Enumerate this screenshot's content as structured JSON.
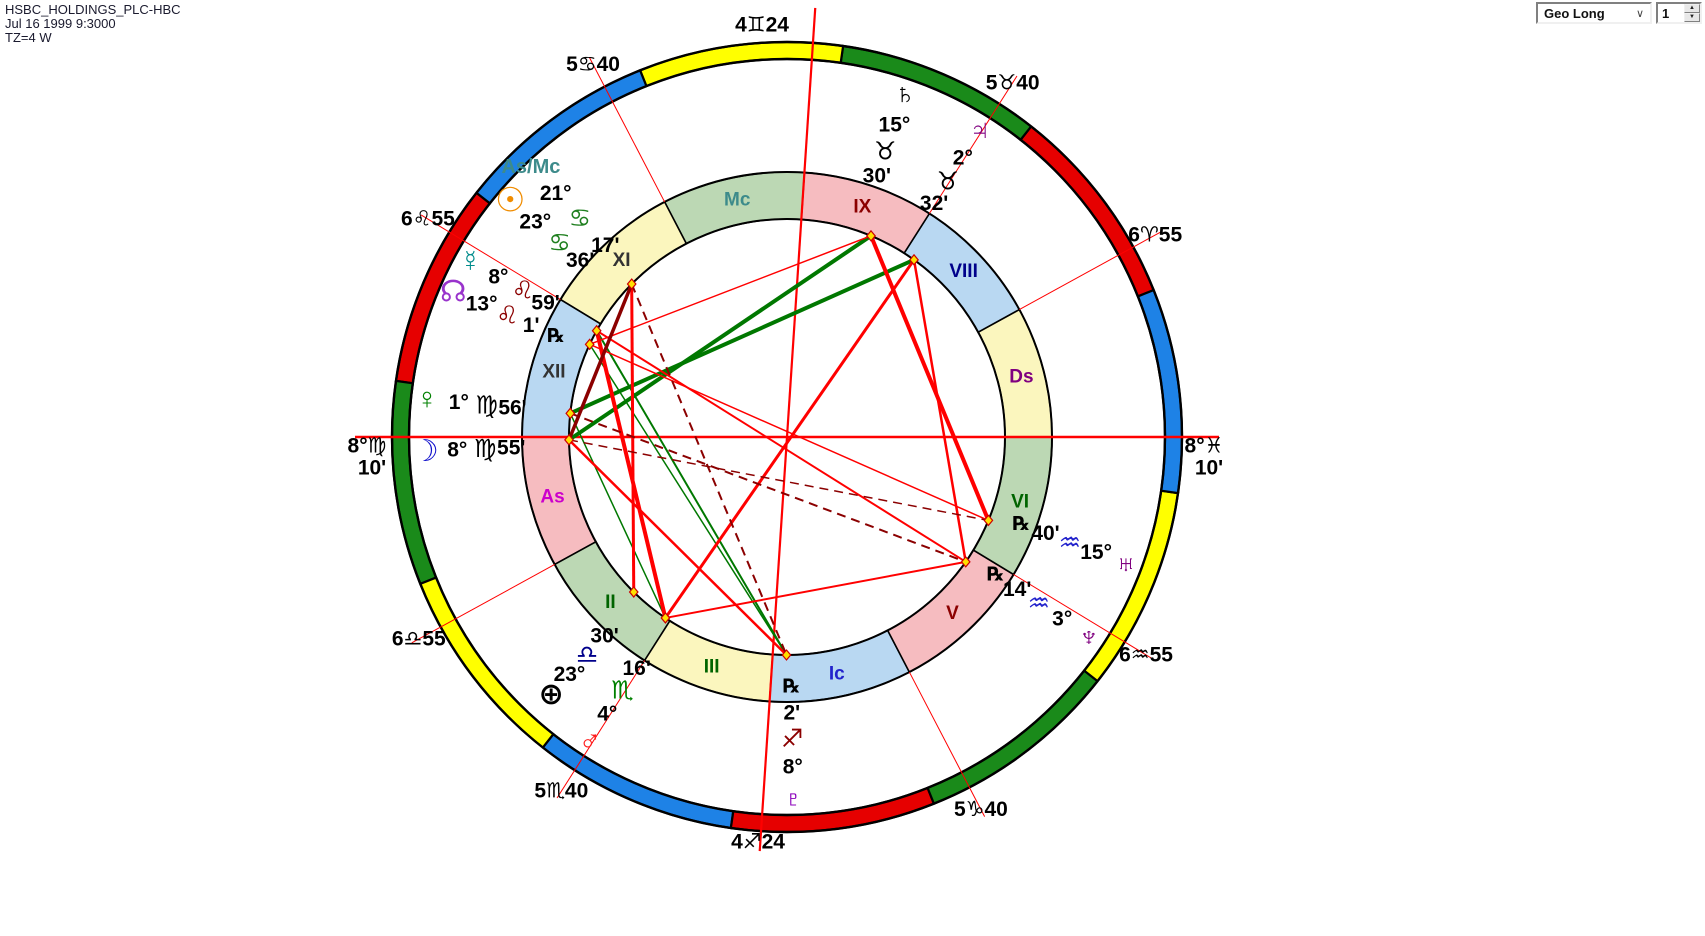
{
  "header": {
    "title": "HSBC_HOLDINGS_PLC-HBC",
    "date": "Jul 16 1999 9:3000",
    "tz": "TZ=4 W"
  },
  "controls": {
    "dropdown_value": "Geo Long",
    "dropdown_chevron": "∨",
    "spinner_value": "1",
    "spinner_up": "▲",
    "spinner_down": "▼"
  },
  "colors": {
    "fire": "#e60000",
    "earth": "#1a8a1a",
    "air": "#ffff00",
    "water": "#1e82e6",
    "ring_pink": "#f6bcc0",
    "ring_green": "#bcd8b4",
    "ring_blue": "#b9d8f2",
    "ring_yellow": "#fbf6be",
    "aspect_red": "#ff0000",
    "aspect_green": "#007800",
    "aspect_maroon": "#8b0000",
    "cusp_line": "#ff0000",
    "axis_line": "#ff0000",
    "marker_fill": "#ffe000",
    "marker_stroke": "#cc0000",
    "label_black": "#000000",
    "asmc_teal": "#3d8b8b"
  },
  "chart": {
    "asc_lon": 158.1667,
    "zodiac_band": [
      {
        "sign": "aries",
        "lon": 0,
        "element": "fire"
      },
      {
        "sign": "taurus",
        "lon": 30,
        "element": "earth"
      },
      {
        "sign": "gemini",
        "lon": 60,
        "element": "air"
      },
      {
        "sign": "cancer",
        "lon": 90,
        "element": "water"
      },
      {
        "sign": "leo",
        "lon": 120,
        "element": "fire"
      },
      {
        "sign": "virgo",
        "lon": 150,
        "element": "earth"
      },
      {
        "sign": "libra",
        "lon": 180,
        "element": "air"
      },
      {
        "sign": "scorpio",
        "lon": 210,
        "element": "water"
      },
      {
        "sign": "sagittarius",
        "lon": 240,
        "element": "fire"
      },
      {
        "sign": "capricorn",
        "lon": 270,
        "element": "earth"
      },
      {
        "sign": "aquarius",
        "lon": 300,
        "element": "air"
      },
      {
        "sign": "pisces",
        "lon": 330,
        "element": "water"
      }
    ],
    "houses": [
      {
        "num": "I",
        "ring_label": "As",
        "label_color": "#cc00cc",
        "ring": "ring_pink",
        "lon": 158.1667,
        "cusp_label": "8°♍10'",
        "axis": "asc"
      },
      {
        "num": "II",
        "ring_label": "II",
        "label_color": "#006400",
        "ring": "ring_green",
        "lon": 186.9167,
        "cusp_label": "6♎55"
      },
      {
        "num": "III",
        "ring_label": "III",
        "label_color": "#006400",
        "ring": "ring_yellow",
        "lon": 215.6667,
        "cusp_label": "5♏40"
      },
      {
        "num": "IV",
        "ring_label": "Ic",
        "label_color": "#2222cc",
        "ring": "ring_blue",
        "lon": 244.4,
        "cusp_label": "4♐24",
        "axis": "ic"
      },
      {
        "num": "V",
        "ring_label": "V",
        "label_color": "#8b0000",
        "ring": "ring_pink",
        "lon": 275.6667,
        "cusp_label": "5♑40"
      },
      {
        "num": "VI",
        "ring_label": "VI",
        "label_color": "#006400",
        "ring": "ring_green",
        "lon": 306.9167,
        "cusp_label": "6♒55"
      },
      {
        "num": "VII",
        "ring_label": "Ds",
        "label_color": "#800080",
        "ring": "ring_yellow",
        "lon": 338.1667,
        "cusp_label": "8°♓10'",
        "axis": "desc"
      },
      {
        "num": "VIII",
        "ring_label": "VIII",
        "label_color": "#00008b",
        "ring": "ring_blue",
        "lon": 6.9167,
        "cusp_label": "6♈55"
      },
      {
        "num": "IX",
        "ring_label": "IX",
        "label_color": "#8b0000",
        "ring": "ring_pink",
        "lon": 35.6667,
        "cusp_label": "5♉40"
      },
      {
        "num": "X",
        "ring_label": "Mc",
        "label_color": "#3d8b8b",
        "ring": "ring_green",
        "lon": 64.4,
        "cusp_label": "4♊24",
        "axis": "mc"
      },
      {
        "num": "XI",
        "ring_label": "XI",
        "label_color": "#333333",
        "ring": "ring_yellow",
        "lon": 95.6667,
        "cusp_label": "5♋40"
      },
      {
        "num": "XII",
        "ring_label": "XII",
        "label_color": "#333333",
        "ring": "ring_blue",
        "lon": 126.9167,
        "cusp_label": "6♌55"
      }
    ],
    "planets": [
      {
        "id": "asmc",
        "label": "As/Mc",
        "deg": "21°",
        "sign": "♋",
        "min": "17'",
        "lon": 111.2833,
        "glyph_color": "#3d8b8b",
        "sign_color": "#1f7f1f"
      },
      {
        "id": "sun",
        "glyph": "☉",
        "deg": "23°",
        "sign": "♋",
        "min": "36'",
        "lon": 113.6,
        "glyph_color": "#f08c00",
        "sign_color": "#1f7f1f"
      },
      {
        "id": "mercury",
        "glyph": "☿",
        "deg": "8°",
        "sign": "♌",
        "min": "59'",
        "lon": 128.9833,
        "glyph_color": "#008b8b",
        "sign_color": "#8b0000"
      },
      {
        "id": "node",
        "glyph": "☊",
        "deg": "13°",
        "sign": "♌",
        "min": "1'",
        "retro": "℞",
        "lon": 133.0167,
        "glyph_color": "#9933cc",
        "sign_color": "#8b0000"
      },
      {
        "id": "venus",
        "glyph": "♀",
        "deg": "1°",
        "sign": "♍",
        "min": "56'",
        "lon": 151.9333,
        "glyph_color": "#008000",
        "sign_color": "#000000"
      },
      {
        "id": "moon",
        "glyph": "☽",
        "deg": "8°",
        "sign": "♍",
        "min": "55'",
        "lon": 158.9167,
        "glyph_color": "#1010cc",
        "sign_color": "#000000"
      },
      {
        "id": "pof",
        "glyph": "⊕",
        "deg": "23°",
        "sign": "♎",
        "min": "30'",
        "lon": 203.5,
        "glyph_color": "#000000",
        "sign_color": "#00008b"
      },
      {
        "id": "mars",
        "glyph": "♂",
        "deg": "4°",
        "sign": "♏",
        "min": "16'",
        "lon": 214.2667,
        "glyph_color": "#ff1a1a",
        "sign_color": "#008000"
      },
      {
        "id": "pluto",
        "glyph": "♇",
        "deg": "8°",
        "sign": "♐",
        "min": "2'",
        "retro": "℞",
        "lon": 248.0333,
        "glyph_color": "#8b00bb",
        "sign_color": "#8b0000"
      },
      {
        "id": "neptune",
        "glyph": "♆",
        "deg": "3°",
        "sign": "♒",
        "min": "14'",
        "retro": "℞",
        "lon": 303.2333,
        "glyph_color": "#800080",
        "sign_color": "#2222cc"
      },
      {
        "id": "uranus",
        "glyph": "♅",
        "deg": "15°",
        "sign": "♒",
        "min": "40'",
        "retro": "℞",
        "lon": 315.6667,
        "glyph_color": "#800080",
        "sign_color": "#2222cc"
      },
      {
        "id": "jupiter",
        "glyph": "♃",
        "deg": "2°",
        "sign": "♉",
        "min": "32'",
        "lon": 32.5333,
        "glyph_color": "#800080",
        "sign_color": "#000000"
      },
      {
        "id": "saturn",
        "glyph": "♄",
        "deg": "15°",
        "sign": "♉",
        "min": "30'",
        "lon": 45.5,
        "glyph_color": "#000000",
        "sign_color": "#000000"
      }
    ],
    "aspects": [
      {
        "a": "moon",
        "b": "saturn",
        "color": "aspect_green",
        "w": 4
      },
      {
        "a": "venus",
        "b": "jupiter",
        "color": "aspect_green",
        "w": 4
      },
      {
        "a": "mercury",
        "b": "pluto",
        "color": "aspect_green",
        "w": 2
      },
      {
        "a": "node",
        "b": "pluto",
        "color": "aspect_green",
        "w": 1.5
      },
      {
        "a": "venus",
        "b": "mars",
        "color": "aspect_green",
        "w": 1.5
      },
      {
        "a": "saturn",
        "b": "uranus",
        "color": "aspect_red",
        "w": 4
      },
      {
        "a": "mercury",
        "b": "mars",
        "color": "aspect_red",
        "w": 4
      },
      {
        "a": "jupiter",
        "b": "mars",
        "color": "aspect_red",
        "w": 3
      },
      {
        "a": "sun",
        "b": "pof",
        "color": "aspect_red",
        "w": 3
      },
      {
        "a": "moon",
        "b": "pluto",
        "color": "aspect_red",
        "w": 2.5
      },
      {
        "a": "jupiter",
        "b": "neptune",
        "color": "aspect_red",
        "w": 2.5
      },
      {
        "a": "mercury",
        "b": "neptune",
        "color": "aspect_red",
        "w": 2
      },
      {
        "a": "mars",
        "b": "neptune",
        "color": "aspect_red",
        "w": 2
      },
      {
        "a": "node",
        "b": "uranus",
        "color": "aspect_red",
        "w": 1.5
      },
      {
        "a": "saturn",
        "b": "node",
        "color": "aspect_red",
        "w": 1.5
      },
      {
        "a": "sun",
        "b": "moon",
        "color": "aspect_maroon",
        "w": 3.5
      },
      {
        "a": "sun",
        "b": "pluto",
        "color": "aspect_maroon",
        "w": 2,
        "dash": "9 6"
      },
      {
        "a": "venus",
        "b": "neptune",
        "color": "aspect_maroon",
        "w": 2,
        "dash": "9 6"
      },
      {
        "a": "moon",
        "b": "uranus",
        "color": "aspect_maroon",
        "w": 1.5,
        "dash": "9 6"
      }
    ],
    "axis_end_labels": {
      "left_line1": "8°♍",
      "left_line2": "10'",
      "right_line1": "8°♓",
      "right_line2": "10'"
    }
  }
}
